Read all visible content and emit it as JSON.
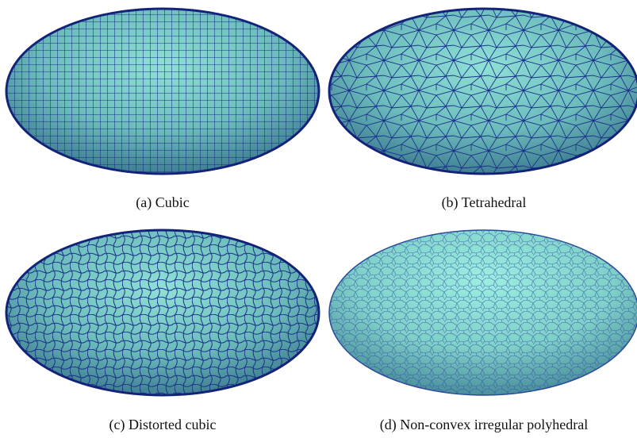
{
  "panels": [
    {
      "caption": "(a) Cubic"
    },
    {
      "caption": "(b) Tetrahedral"
    },
    {
      "caption": "(c) Distorted cubic"
    },
    {
      "caption": "(d) Non-convex irregular polyhedral"
    }
  ]
}
